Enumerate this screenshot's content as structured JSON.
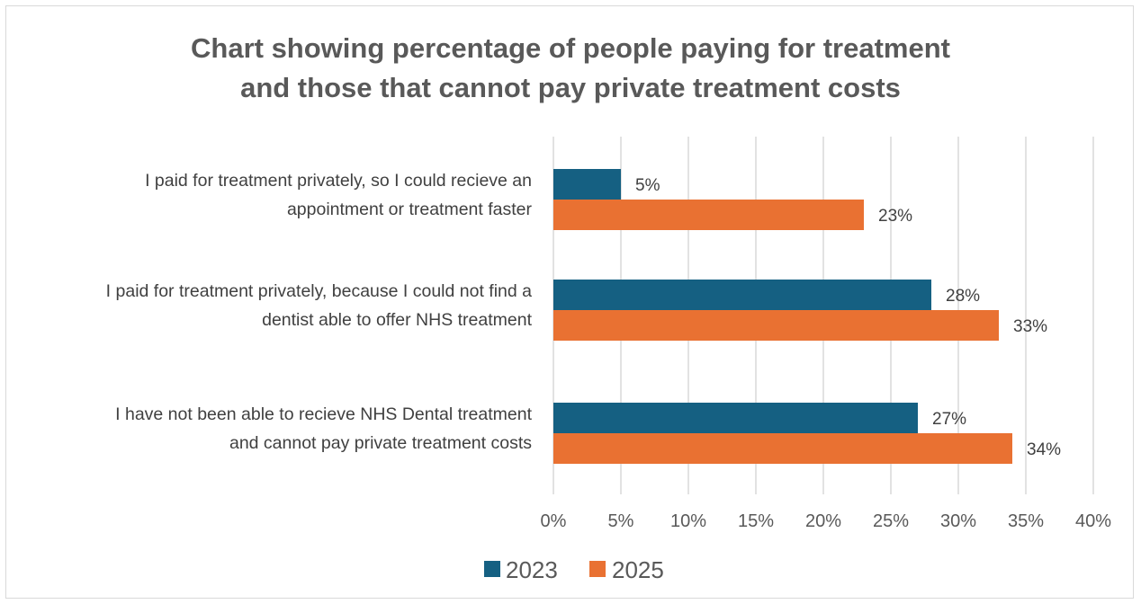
{
  "chart_data": {
    "type": "bar",
    "orientation": "horizontal",
    "title_lines": [
      "Chart showing percentage of people paying for treatment",
      "and those that cannot pay private treatment costs"
    ],
    "categories": [
      [
        "I paid for treatment privately, so I could recieve an",
        "appointment or treatment faster"
      ],
      [
        "I paid for treatment privately, because I could not find a",
        "dentist able to offer NHS treatment"
      ],
      [
        "I have not been able to recieve NHS Dental treatment",
        "and cannot pay private treatment costs"
      ]
    ],
    "series": [
      {
        "name": "2023",
        "color": "#156082",
        "values": [
          5,
          28,
          27
        ],
        "labels": [
          "5%",
          "28%",
          "27%"
        ]
      },
      {
        "name": "2025",
        "color": "#E97132",
        "values": [
          23,
          33,
          34
        ],
        "labels": [
          "23%",
          "33%",
          "34%"
        ]
      }
    ],
    "xlim": [
      0,
      40
    ],
    "ticks": [
      0,
      5,
      10,
      15,
      20,
      25,
      30,
      35,
      40
    ],
    "tick_labels": [
      "0%",
      "5%",
      "10%",
      "15%",
      "20%",
      "25%",
      "30%",
      "35%",
      "40%"
    ],
    "grid": true,
    "grid_color": "#d9d9d9",
    "legend_position": "bottom"
  }
}
